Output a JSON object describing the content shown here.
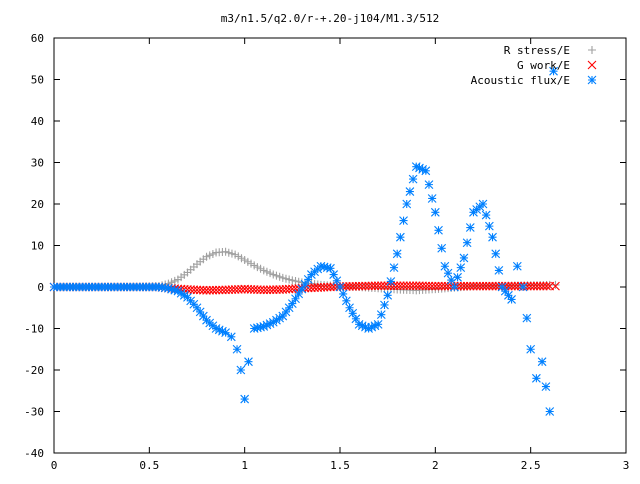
{
  "chart_data": {
    "type": "scatter",
    "title": "m3/n1.5/q2.0/r-+.20-j104/M1.3/512",
    "xlabel": "",
    "ylabel": "",
    "xlim": [
      0,
      3
    ],
    "ylim": [
      -40,
      60
    ],
    "grid": false,
    "legend_position": "top-right",
    "x_ticks": [
      {
        "value": 0,
        "label": "0"
      },
      {
        "value": 0.5,
        "label": "0.5"
      },
      {
        "value": 1,
        "label": "1"
      },
      {
        "value": 1.5,
        "label": "1.5"
      },
      {
        "value": 2,
        "label": "2"
      },
      {
        "value": 2.5,
        "label": "2.5"
      },
      {
        "value": 3,
        "label": "3"
      }
    ],
    "y_ticks": [
      {
        "value": -40,
        "label": "-40"
      },
      {
        "value": -30,
        "label": "-30"
      },
      {
        "value": -20,
        "label": "-20"
      },
      {
        "value": -10,
        "label": "-10"
      },
      {
        "value": 0,
        "label": "0"
      },
      {
        "value": 10,
        "label": "10"
      },
      {
        "value": 20,
        "label": "20"
      },
      {
        "value": 30,
        "label": "30"
      },
      {
        "value": 40,
        "label": "40"
      },
      {
        "value": 50,
        "label": "50"
      },
      {
        "value": 60,
        "label": "60"
      }
    ],
    "series": [
      {
        "name": "R stress/E",
        "marker": "plus",
        "color": "#a0a0a0",
        "x": [
          0.0,
          0.2,
          0.4,
          0.55,
          0.6,
          0.65,
          0.7,
          0.75,
          0.8,
          0.85,
          0.9,
          0.95,
          1.0,
          1.05,
          1.1,
          1.15,
          1.2,
          1.25,
          1.3,
          1.35,
          1.4,
          1.5,
          1.6,
          1.7,
          1.8,
          1.9,
          2.0,
          2.2,
          2.4,
          2.6,
          2.63
        ],
        "y": [
          0,
          0,
          0,
          0.2,
          0.8,
          1.8,
          3.5,
          5.5,
          7.3,
          8.3,
          8.5,
          7.8,
          6.5,
          5.2,
          4.0,
          3.0,
          2.2,
          1.6,
          1.1,
          0.8,
          0.5,
          0.2,
          0.0,
          -0.3,
          -0.6,
          -0.8,
          -0.5,
          0.2,
          0.3,
          0.5,
          0.5
        ]
      },
      {
        "name": "G work/E",
        "marker": "cross",
        "color": "#ff0000",
        "x": [
          0.0,
          0.2,
          0.4,
          0.55,
          0.6,
          0.7,
          0.8,
          0.9,
          1.0,
          1.1,
          1.2,
          1.3,
          1.4,
          1.5,
          1.6,
          1.7,
          1.8,
          1.9,
          2.0,
          2.1,
          2.2,
          2.3,
          2.4,
          2.5,
          2.6,
          2.63
        ],
        "y": [
          0,
          0,
          0,
          0,
          -0.3,
          -0.6,
          -0.8,
          -0.7,
          -0.5,
          -0.7,
          -0.6,
          -0.3,
          -0.1,
          0.1,
          0.2,
          0.3,
          0.3,
          0.3,
          0.2,
          0.2,
          0.2,
          0.2,
          0.2,
          0.2,
          0.2,
          0.2
        ]
      },
      {
        "name": "Acoustic flux/E",
        "marker": "star",
        "color": "#0080ff",
        "x": [
          0.0,
          0.2,
          0.4,
          0.55,
          0.6,
          0.65,
          0.7,
          0.75,
          0.8,
          0.85,
          0.9,
          0.93,
          0.96,
          0.98,
          1.0,
          1.02,
          1.05,
          1.1,
          1.15,
          1.2,
          1.25,
          1.3,
          1.35,
          1.4,
          1.45,
          1.5,
          1.55,
          1.6,
          1.65,
          1.7,
          1.75,
          1.8,
          1.85,
          1.9,
          1.95,
          2.0,
          2.05,
          2.1,
          2.15,
          2.2,
          2.25,
          2.3,
          2.35,
          2.4,
          2.43,
          2.46,
          2.5,
          2.53,
          2.56,
          2.6,
          2.62
        ],
        "y": [
          0,
          0,
          0,
          0,
          -0.3,
          -1.0,
          -2.5,
          -5.0,
          -8.0,
          -10.0,
          -11.0,
          -12.0,
          -15.0,
          -20.0,
          -27.0,
          -18.0,
          -10.0,
          -9.5,
          -8.5,
          -7.0,
          -4.0,
          -0.5,
          3.0,
          5.0,
          4.5,
          0.0,
          -5.0,
          -9.0,
          -10.0,
          -9.0,
          -2.0,
          8.0,
          20.0,
          29.0,
          28.0,
          18.0,
          5.0,
          0.0,
          7.0,
          18.0,
          20.0,
          12.0,
          0.0,
          -3.0,
          5.0,
          0.0,
          -15.0,
          -22.0,
          -18.0,
          -30.0,
          52.0
        ]
      }
    ]
  }
}
